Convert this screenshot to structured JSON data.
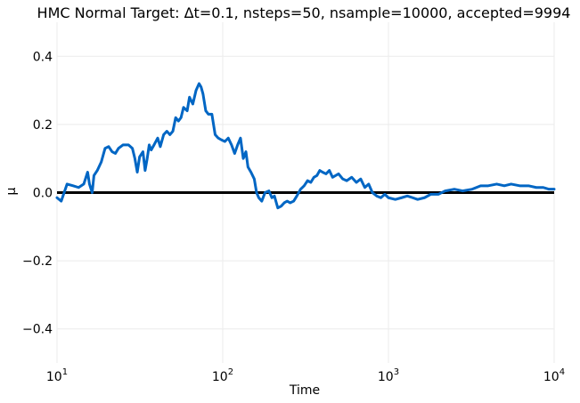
{
  "chart_data": {
    "type": "line",
    "title": "HMC Normal Target: Δt=0.1, nsteps=50, nsample=10000, accepted=9994",
    "xlabel": "Time",
    "ylabel": "μ",
    "xscale": "log",
    "xlim": [
      10,
      10000
    ],
    "ylim": [
      -0.5,
      0.5
    ],
    "grid": true,
    "legend": "none",
    "x_ticks": [
      {
        "value": 10,
        "base": "10",
        "exp": "1"
      },
      {
        "value": 100,
        "base": "10",
        "exp": "2"
      },
      {
        "value": 1000,
        "base": "10",
        "exp": "3"
      },
      {
        "value": 10000,
        "base": "10",
        "exp": "4"
      }
    ],
    "y_ticks": [
      {
        "value": 0.4,
        "label": "0.4"
      },
      {
        "value": 0.2,
        "label": "0.2"
      },
      {
        "value": 0.0,
        "label": "0.0"
      },
      {
        "value": -0.2,
        "label": "−0.2"
      },
      {
        "value": -0.4,
        "label": "−0.4"
      }
    ],
    "reference_line": {
      "y": 0.0,
      "color": "#000000"
    },
    "series": [
      {
        "color": "#0066c4",
        "points": [
          [
            10,
            -0.015
          ],
          [
            10.6,
            -0.025
          ],
          [
            11.5,
            0.025
          ],
          [
            12.5,
            0.02
          ],
          [
            13.5,
            0.015
          ],
          [
            14.5,
            0.025
          ],
          [
            15.3,
            0.06
          ],
          [
            15.7,
            0.025
          ],
          [
            16.3,
            0.0
          ],
          [
            16.7,
            0.05
          ],
          [
            17.5,
            0.065
          ],
          [
            18.5,
            0.09
          ],
          [
            19.5,
            0.13
          ],
          [
            20.5,
            0.135
          ],
          [
            21.5,
            0.12
          ],
          [
            22.5,
            0.115
          ],
          [
            23.5,
            0.13
          ],
          [
            25,
            0.14
          ],
          [
            27,
            0.14
          ],
          [
            28.5,
            0.13
          ],
          [
            29.5,
            0.1
          ],
          [
            30.5,
            0.06
          ],
          [
            31.5,
            0.105
          ],
          [
            33,
            0.12
          ],
          [
            34,
            0.065
          ],
          [
            35,
            0.1
          ],
          [
            36,
            0.14
          ],
          [
            37,
            0.125
          ],
          [
            38.5,
            0.14
          ],
          [
            40.5,
            0.16
          ],
          [
            42,
            0.135
          ],
          [
            44,
            0.17
          ],
          [
            46,
            0.18
          ],
          [
            48,
            0.17
          ],
          [
            50,
            0.18
          ],
          [
            52,
            0.22
          ],
          [
            54,
            0.21
          ],
          [
            56,
            0.22
          ],
          [
            58,
            0.25
          ],
          [
            61,
            0.24
          ],
          [
            63,
            0.28
          ],
          [
            66,
            0.26
          ],
          [
            69,
            0.3
          ],
          [
            72,
            0.32
          ],
          [
            74,
            0.31
          ],
          [
            76,
            0.29
          ],
          [
            79,
            0.24
          ],
          [
            82,
            0.23
          ],
          [
            86,
            0.23
          ],
          [
            90,
            0.17
          ],
          [
            94,
            0.16
          ],
          [
            98,
            0.155
          ],
          [
            103,
            0.15
          ],
          [
            108,
            0.16
          ],
          [
            113,
            0.14
          ],
          [
            118,
            0.115
          ],
          [
            123,
            0.14
          ],
          [
            128,
            0.16
          ],
          [
            133,
            0.1
          ],
          [
            138,
            0.12
          ],
          [
            142,
            0.075
          ],
          [
            148,
            0.06
          ],
          [
            155,
            0.04
          ],
          [
            160,
            0.0
          ],
          [
            165,
            -0.015
          ],
          [
            172,
            -0.025
          ],
          [
            180,
            0.0
          ],
          [
            190,
            0.005
          ],
          [
            198,
            -0.015
          ],
          [
            205,
            -0.01
          ],
          [
            215,
            -0.045
          ],
          [
            225,
            -0.04
          ],
          [
            235,
            -0.03
          ],
          [
            245,
            -0.025
          ],
          [
            255,
            -0.03
          ],
          [
            268,
            -0.025
          ],
          [
            280,
            -0.01
          ],
          [
            295,
            0.01
          ],
          [
            310,
            0.02
          ],
          [
            325,
            0.035
          ],
          [
            340,
            0.03
          ],
          [
            355,
            0.045
          ],
          [
            370,
            0.05
          ],
          [
            385,
            0.065
          ],
          [
            400,
            0.06
          ],
          [
            420,
            0.055
          ],
          [
            440,
            0.065
          ],
          [
            460,
            0.045
          ],
          [
            480,
            0.05
          ],
          [
            500,
            0.055
          ],
          [
            530,
            0.04
          ],
          [
            560,
            0.035
          ],
          [
            600,
            0.045
          ],
          [
            640,
            0.03
          ],
          [
            680,
            0.04
          ],
          [
            720,
            0.015
          ],
          [
            760,
            0.025
          ],
          [
            800,
            0.0
          ],
          [
            850,
            -0.01
          ],
          [
            900,
            -0.015
          ],
          [
            950,
            -0.005
          ],
          [
            1000,
            -0.015
          ],
          [
            1100,
            -0.02
          ],
          [
            1200,
            -0.015
          ],
          [
            1300,
            -0.01
          ],
          [
            1400,
            -0.015
          ],
          [
            1500,
            -0.02
          ],
          [
            1650,
            -0.015
          ],
          [
            1800,
            -0.005
          ],
          [
            2000,
            -0.005
          ],
          [
            2200,
            0.005
          ],
          [
            2500,
            0.01
          ],
          [
            2800,
            0.005
          ],
          [
            3200,
            0.01
          ],
          [
            3600,
            0.02
          ],
          [
            4000,
            0.02
          ],
          [
            4500,
            0.025
          ],
          [
            5000,
            0.02
          ],
          [
            5500,
            0.025
          ],
          [
            6200,
            0.02
          ],
          [
            7000,
            0.02
          ],
          [
            7800,
            0.015
          ],
          [
            8600,
            0.015
          ],
          [
            9300,
            0.01
          ],
          [
            10000,
            0.01
          ]
        ]
      }
    ]
  }
}
